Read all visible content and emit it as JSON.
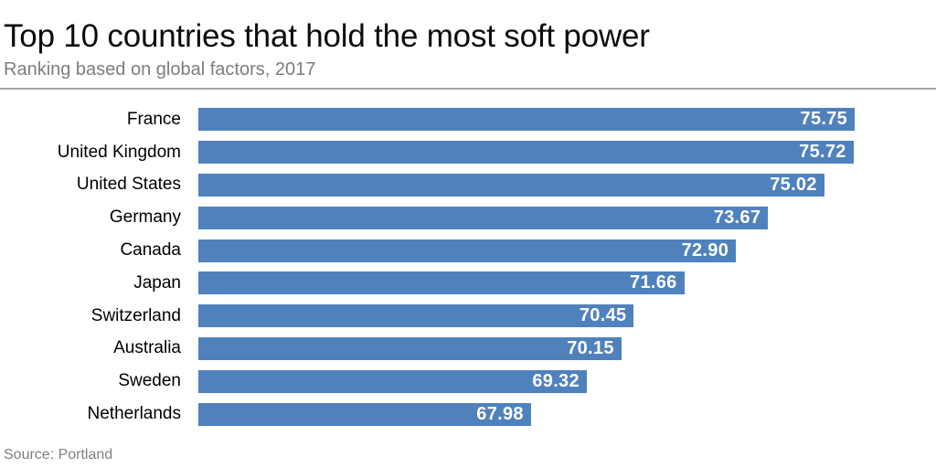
{
  "chart_data": {
    "type": "bar",
    "orientation": "horizontal",
    "title": "Top 10 countries that hold the most soft power",
    "subtitle": "Ranking based on global factors, 2017",
    "categories": [
      "France",
      "United Kingdom",
      "United States",
      "Germany",
      "Canada",
      "Japan",
      "Switzerland",
      "Australia",
      "Sweden",
      "Netherlands"
    ],
    "values": [
      75.75,
      75.72,
      75.02,
      73.67,
      72.9,
      71.66,
      70.45,
      70.15,
      69.32,
      67.98
    ],
    "value_decimals": 2,
    "xlabel": "",
    "ylabel": "",
    "xlim": [
      60,
      77.7
    ],
    "grid": false,
    "legend": false,
    "bar_color": "#4f81bd",
    "value_label_color": "#ffffff"
  },
  "footer": {
    "source": "Source: Portland"
  }
}
